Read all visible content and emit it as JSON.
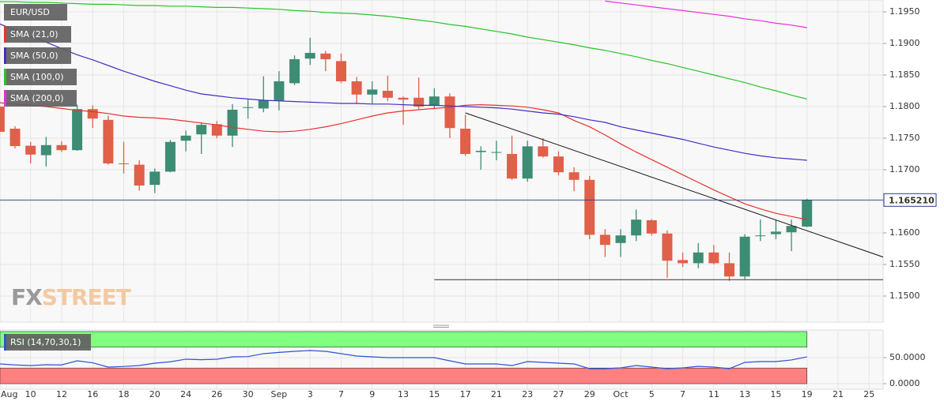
{
  "chart_data": [
    {
      "type": "candlestick",
      "title": "EUR/USD",
      "watermark": [
        "FX",
        "STREET"
      ],
      "categories": [
        "Aug",
        null,
        "10",
        null,
        "12",
        null,
        "16",
        null,
        "18",
        null,
        "20",
        null,
        "24",
        null,
        "26",
        null,
        "30",
        null,
        "Sep",
        null,
        "3",
        null,
        "7",
        null,
        "9",
        null,
        "13",
        null,
        "15",
        null,
        "17",
        null,
        "21",
        null,
        "23",
        null,
        "27",
        null,
        "29",
        null,
        "Oct",
        null,
        "5",
        null,
        "7",
        null,
        "11",
        null,
        "13",
        null,
        "15",
        null,
        "19",
        null,
        "21",
        null,
        "25"
      ],
      "open": [
        1.18,
        1.1765,
        1.1738,
        1.1723,
        1.1739,
        1.1731,
        1.1796,
        1.1779,
        1.171,
        1.1708,
        1.1676,
        1.1697,
        1.1746,
        1.1756,
        1.1772,
        1.1754,
        1.1798,
        1.1797,
        1.1809,
        1.1837,
        1.1876,
        1.1884,
        1.1872,
        1.184,
        1.1819,
        1.1825,
        1.1814,
        1.1814,
        1.1802,
        1.1816,
        1.1765,
        1.1728,
        1.1727,
        1.1725,
        1.1686,
        1.1737,
        1.1721,
        1.1696,
        1.1684,
        1.1597,
        1.1584,
        1.1596,
        1.162,
        1.1599,
        1.1557,
        1.1552,
        1.1569,
        1.1552,
        1.1531,
        1.1595,
        1.1598,
        1.1601,
        1.161,
        null,
        null,
        null,
        null
      ],
      "high": [
        1.181,
        1.1769,
        1.1744,
        1.1752,
        1.1745,
        1.1803,
        1.1802,
        1.1786,
        1.1744,
        1.1715,
        1.1702,
        1.1747,
        1.1762,
        1.1775,
        1.1777,
        1.1804,
        1.1811,
        1.1848,
        1.1856,
        1.1881,
        1.1909,
        1.1888,
        1.1884,
        1.1847,
        1.184,
        1.1849,
        1.1816,
        1.1846,
        1.1829,
        1.1821,
        1.1787,
        1.1737,
        1.1746,
        1.1754,
        1.1746,
        1.175,
        1.1729,
        1.1704,
        1.169,
        1.1606,
        1.1606,
        1.1637,
        1.1622,
        1.1604,
        1.1569,
        1.1584,
        1.1581,
        1.1569,
        1.1598,
        1.1621,
        1.1621,
        1.1621,
        1.1654,
        null,
        null,
        null,
        null
      ],
      "low": [
        1.1752,
        1.1734,
        1.171,
        1.1705,
        1.1728,
        1.173,
        1.1766,
        1.1708,
        1.1694,
        1.1667,
        1.1663,
        1.1696,
        1.1729,
        1.1725,
        1.175,
        1.1736,
        1.1781,
        1.1791,
        1.1794,
        1.1834,
        1.1866,
        1.1856,
        1.1837,
        1.1804,
        1.1804,
        1.1809,
        1.1771,
        1.1796,
        1.1796,
        1.175,
        1.1722,
        1.17,
        1.1715,
        1.1684,
        1.1681,
        1.1719,
        1.1691,
        1.1666,
        1.159,
        1.1562,
        1.1562,
        1.1587,
        1.1596,
        1.1529,
        1.1546,
        1.1544,
        1.155,
        1.1524,
        1.1527,
        1.1587,
        1.159,
        1.1571,
        1.1609,
        null,
        null,
        null,
        null
      ],
      "close": [
        1.176,
        1.17375,
        1.1724,
        1.1739,
        1.1731,
        1.1796,
        1.1781,
        1.171,
        1.1709,
        1.1675,
        1.1697,
        1.1744,
        1.1754,
        1.1771,
        1.1754,
        1.1795,
        1.1799,
        1.181,
        1.184,
        1.1875,
        1.1885,
        1.1875,
        1.184,
        1.1819,
        1.1827,
        1.1814,
        1.1811,
        1.18,
        1.1816,
        1.1766,
        1.1725,
        1.173,
        1.1728,
        1.1686,
        1.1737,
        1.1721,
        1.1696,
        1.1684,
        1.1597,
        1.1581,
        1.1596,
        1.1621,
        1.1599,
        1.1556,
        1.1552,
        1.1569,
        1.1552,
        1.1531,
        1.1594,
        1.1596,
        1.1602,
        1.1611,
        1.16521,
        null,
        null,
        null,
        null
      ],
      "up_color": "#3d8c74",
      "down_color": "#e0604a",
      "series": [
        {
          "name": "SMA (21,0)",
          "color": "#e8322b",
          "values": [
            1.1806,
            1.1804,
            1.1802,
            1.18,
            1.1797,
            1.1794,
            1.1792,
            1.1789,
            1.1785,
            1.1783,
            1.1782,
            1.178,
            1.1777,
            1.1774,
            1.1771,
            1.1767,
            1.1764,
            1.1761,
            1.176,
            1.1761,
            1.1764,
            1.1768,
            1.1773,
            1.1779,
            1.1785,
            1.179,
            1.1793,
            1.1795,
            1.1797,
            1.1799,
            1.1802,
            1.1803,
            1.1802,
            1.1801,
            1.1799,
            1.1795,
            1.179,
            1.1778,
            1.1768,
            1.1755,
            1.1741,
            1.1728,
            1.1716,
            1.1704,
            1.1692,
            1.168,
            1.1668,
            1.1657,
            1.1646,
            1.1638,
            1.1631,
            1.1626,
            1.1621,
            null,
            null,
            null,
            null
          ]
        },
        {
          "name": "SMA (50,0)",
          "color": "#3f2fc4",
          "values": [
            1.1931,
            1.1921,
            1.1911,
            1.1902,
            1.1892,
            1.1882,
            1.1874,
            1.1865,
            1.1856,
            1.1848,
            1.184,
            1.1833,
            1.1826,
            1.182,
            1.1817,
            1.1814,
            1.1812,
            1.181,
            1.1809,
            1.1808,
            1.1807,
            1.1806,
            1.1805,
            1.1805,
            1.1804,
            1.1804,
            1.1803,
            1.1802,
            1.1802,
            1.1801,
            1.18,
            1.1799,
            1.1798,
            1.1796,
            1.1793,
            1.179,
            1.1788,
            1.1784,
            1.1779,
            1.1775,
            1.1768,
            1.1763,
            1.1758,
            1.1753,
            1.1748,
            1.1742,
            1.1736,
            1.1731,
            1.1726,
            1.1722,
            1.1719,
            1.1717,
            1.1715,
            null,
            null,
            null,
            null
          ]
        },
        {
          "name": "SMA (100,0)",
          "color": "#28c428",
          "values": [
            1.1966,
            1.1966,
            1.1965,
            1.1965,
            1.1964,
            1.1963,
            1.1962,
            1.1962,
            1.1961,
            1.196,
            1.196,
            1.1959,
            1.1959,
            1.1958,
            1.1957,
            1.1957,
            1.1956,
            1.1955,
            1.1954,
            1.1952,
            1.1951,
            1.1949,
            1.1948,
            1.1947,
            1.1945,
            1.1943,
            1.194,
            1.1937,
            1.1934,
            1.193,
            1.1927,
            1.1923,
            1.1919,
            1.1915,
            1.191,
            1.1906,
            1.1902,
            1.1898,
            1.1893,
            1.1889,
            1.1884,
            1.1879,
            1.1873,
            1.1868,
            1.1862,
            1.1856,
            1.185,
            1.1844,
            1.1838,
            1.1831,
            1.1825,
            1.1818,
            1.1812,
            null,
            null,
            null,
            null
          ]
        },
        {
          "name": "SMA (200,0)",
          "color": "#e82ce0",
          "values": [
            null,
            null,
            null,
            null,
            null,
            null,
            null,
            null,
            null,
            null,
            null,
            null,
            null,
            null,
            null,
            null,
            null,
            null,
            null,
            null,
            null,
            null,
            null,
            null,
            null,
            null,
            null,
            null,
            null,
            null,
            null,
            null,
            null,
            null,
            null,
            null,
            null,
            null,
            null,
            1.1967,
            1.1964,
            1.1961,
            1.1958,
            1.1955,
            1.1952,
            1.1949,
            1.1946,
            1.1943,
            1.1939,
            1.1936,
            1.1932,
            1.1929,
            1.1925,
            null,
            null,
            null,
            null
          ]
        }
      ],
      "trendlines": [
        {
          "x": [
            30,
            57
          ],
          "y": [
            1.179,
            1.1561
          ],
          "color": "#111111"
        },
        {
          "x": [
            28,
            57
          ],
          "y": [
            1.1526,
            1.1526
          ],
          "color": "#333333"
        }
      ],
      "last_price": {
        "value": 1.16521,
        "label": "1.165210"
      },
      "ylim": [
        1.145875,
        1.196875
      ],
      "yticks": [
        {
          "value": 1.15,
          "label": "1.1500"
        },
        {
          "value": 1.155,
          "label": "1.1550"
        },
        {
          "value": 1.16,
          "label": "1.1600"
        },
        {
          "value": 1.165,
          "label": "1.1650"
        },
        {
          "value": 1.17,
          "label": "1.1700"
        },
        {
          "value": 1.175,
          "label": "1.1750"
        },
        {
          "value": 1.18,
          "label": "1.1800"
        },
        {
          "value": 1.185,
          "label": "1.1850"
        },
        {
          "value": 1.19,
          "label": "1.1900"
        },
        {
          "value": 1.195,
          "label": "1.1950"
        }
      ],
      "grid": true
    },
    {
      "type": "line",
      "title": "RSI (14,70,30,1)",
      "series": [
        {
          "name": "RSI",
          "color": "#2f52d4",
          "values": [
            37.9,
            36,
            34.8,
            36.4,
            36,
            43.9,
            40,
            31.8,
            33,
            34.8,
            39.4,
            42,
            47,
            46,
            47,
            51.5,
            52,
            57.6,
            60,
            62.1,
            63.6,
            62.1,
            57.6,
            53,
            51.5,
            50,
            50,
            50,
            50,
            43.9,
            37.9,
            37.9,
            37.9,
            34.8,
            42.4,
            40.9,
            39.4,
            37.9,
            28.8,
            28.8,
            30.3,
            34.8,
            31.8,
            28.8,
            30.3,
            33.3,
            31.8,
            28.8,
            40.9,
            42.4,
            42.4,
            45.5,
            51.5,
            null,
            null,
            null,
            null
          ]
        }
      ],
      "bands": [
        {
          "range": [
            70,
            100
          ],
          "color": "#80ff80"
        },
        {
          "range": [
            0,
            30
          ],
          "color": "#ff8080"
        }
      ],
      "ylim": [
        -10.6,
        103
      ],
      "yticks": [
        {
          "value": 0,
          "label": "0.0000"
        },
        {
          "value": 50,
          "label": "50.0000"
        }
      ],
      "grid": true
    }
  ]
}
